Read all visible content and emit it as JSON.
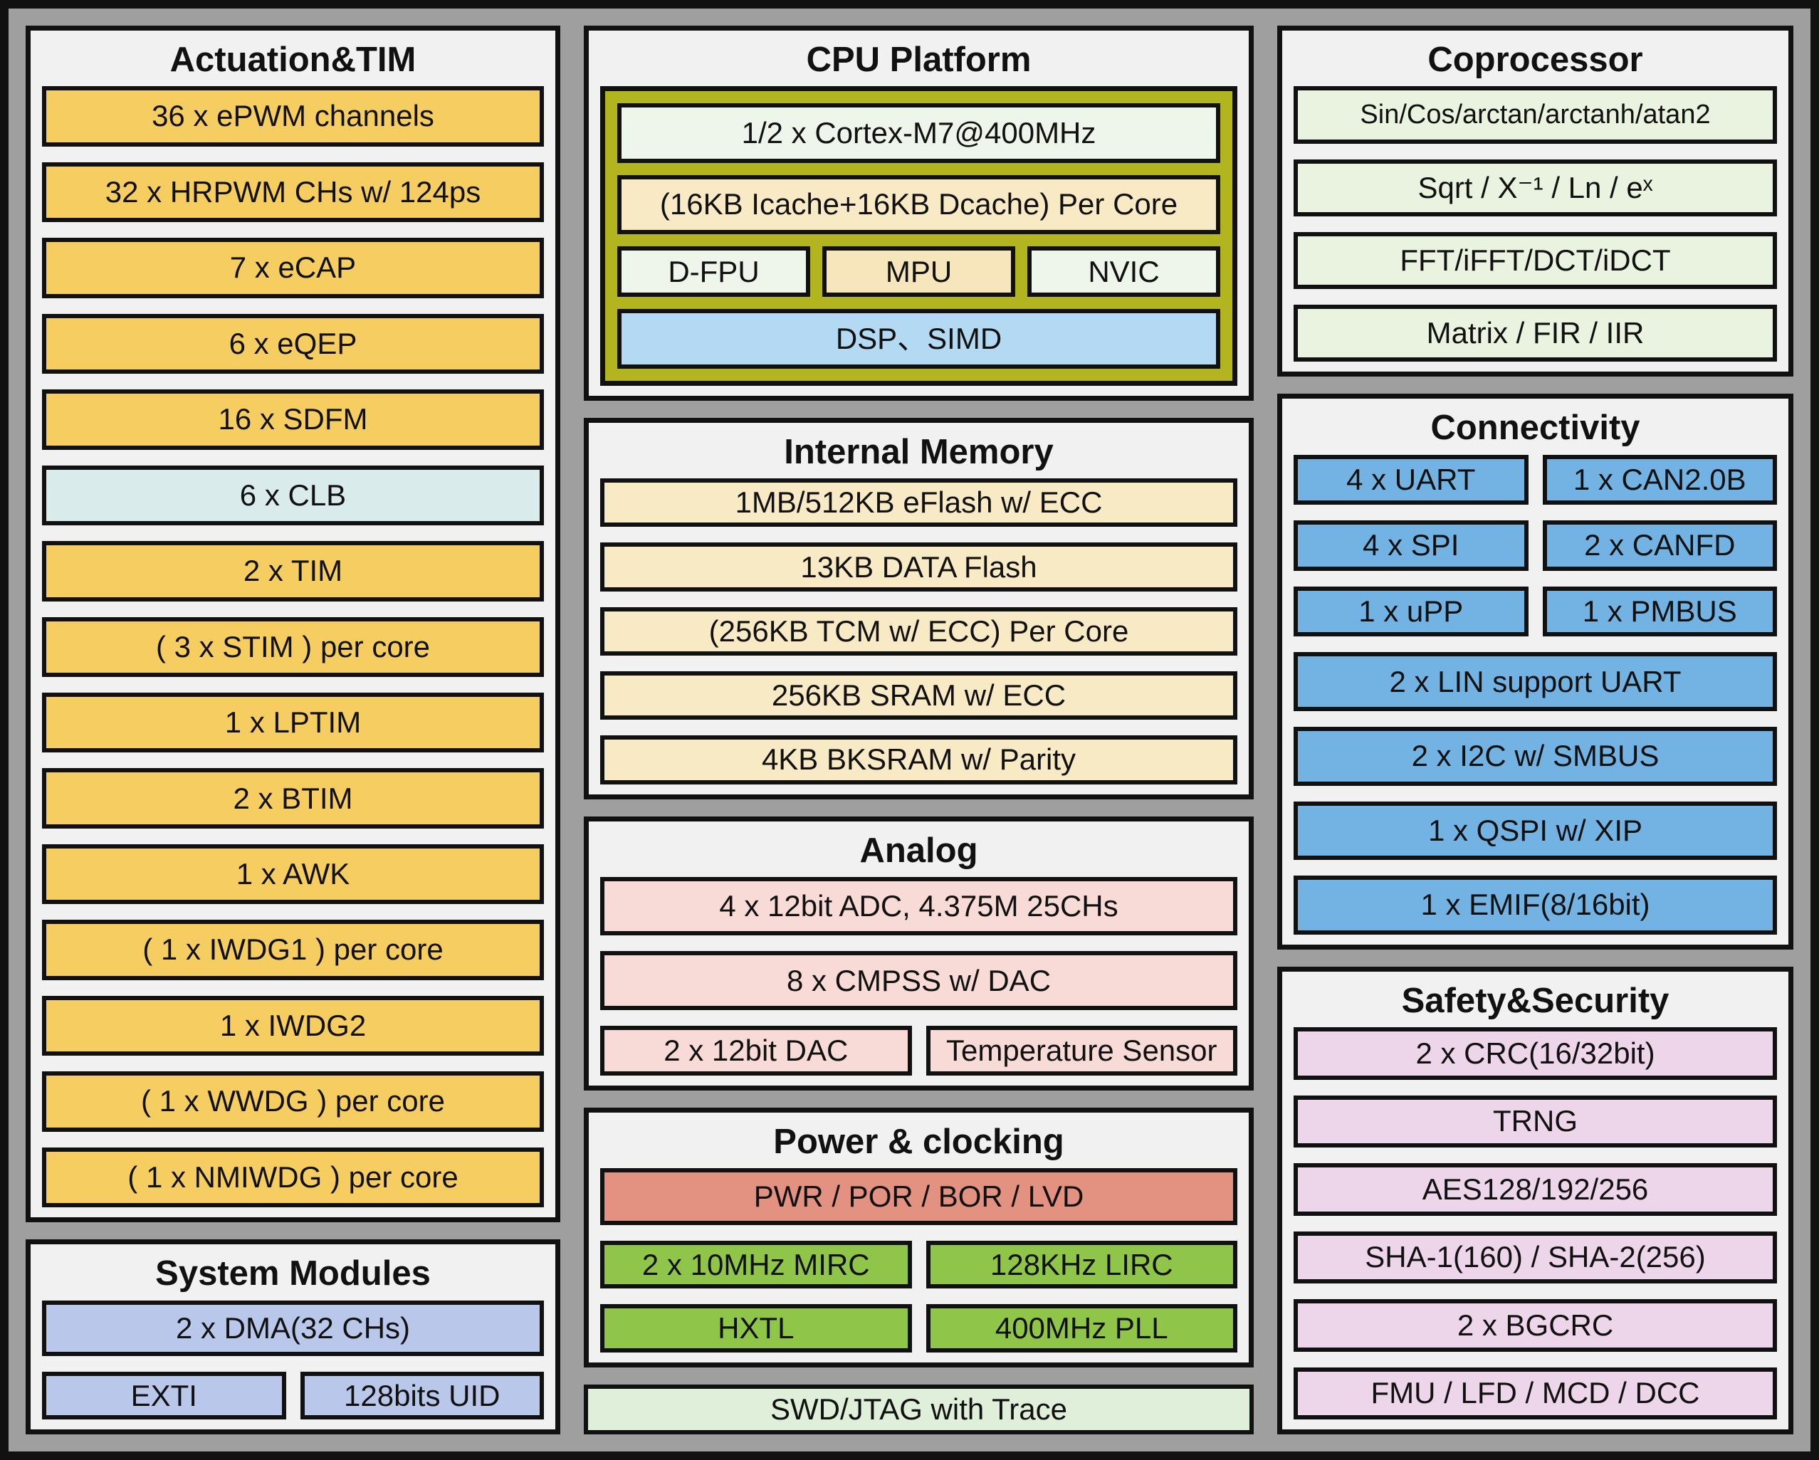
{
  "colors": {
    "ink": "#111111",
    "frame_gray": "#9f9f9f",
    "section_bg": "#f1f1f1",
    "yellow": "#f6cd60",
    "cyan": "#d9eceb",
    "periwinkle": "#b9c7ea",
    "cream": "#f9eac6",
    "cream_dark": "#f7e5bb",
    "pale": "#eef5ea",
    "olive": "#b2b51f",
    "dsp_blue": "#b3daf2",
    "copro_green": "#e9f3e0",
    "conn_blue": "#72b3e3",
    "analog_pink": "#f8dbd7",
    "salmon": "#e39180",
    "clock_green": "#8fc548",
    "swd_green": "#e0efd9",
    "safety_pink": "#eed6ea"
  },
  "left": {
    "actuation": {
      "title": "Actuation&TIM",
      "items": [
        "36 x ePWM channels",
        "32 x HRPWM CHs w/ 124ps",
        "7 x eCAP",
        "6 x eQEP",
        "16 x SDFM",
        "6 x CLB",
        "2 x TIM",
        "( 3 x STIM ) per core",
        "1 x LPTIM",
        "2 x BTIM",
        "1 x AWK",
        "( 1 x IWDG1 ) per core",
        "1 x IWDG2",
        "( 1 x WWDG ) per core",
        "( 1 x NMIWDG ) per core"
      ]
    },
    "system_modules": {
      "title": "System Modules",
      "dma": "2 x DMA(32 CHs)",
      "exti": "EXTI",
      "uid": "128bits UID"
    }
  },
  "middle": {
    "cpu": {
      "title": "CPU Platform",
      "core": "1/2 x Cortex-M7@400MHz",
      "cache": "(16KB Icache+16KB Dcache) Per Core",
      "dfpu": "D-FPU",
      "mpu": "MPU",
      "nvic": "NVIC",
      "dsp": "DSP、SIMD"
    },
    "memory": {
      "title": "Internal Memory",
      "items": [
        "1MB/512KB eFlash w/ ECC",
        "13KB DATA Flash",
        "(256KB TCM w/ ECC) Per Core",
        "256KB SRAM w/ ECC",
        "4KB BKSRAM w/ Parity"
      ]
    },
    "analog": {
      "title": "Analog",
      "adc": "4 x 12bit ADC, 4.375M 25CHs",
      "cmpss": "8 x CMPSS w/ DAC",
      "dac": "2 x 12bit DAC",
      "temp": "Temperature Sensor"
    },
    "power": {
      "title": "Power & clocking",
      "pwr": "PWR / POR / BOR / LVD",
      "mirc": "2 x 10MHz MIRC",
      "lirc": "128KHz LIRC",
      "hxtl": "HXTL",
      "pll": "400MHz PLL"
    },
    "swd": "SWD/JTAG with Trace"
  },
  "right": {
    "coprocessor": {
      "title": "Coprocessor",
      "items": [
        "Sin/Cos/arctan/arctanh/atan2",
        "Sqrt / X⁻¹ / Ln / eˣ",
        "FFT/iFFT/DCT/iDCT",
        "Matrix / FIR / IIR"
      ]
    },
    "connectivity": {
      "title": "Connectivity",
      "pairs": [
        [
          "4 x UART",
          "1 x CAN2.0B"
        ],
        [
          "4 x SPI",
          "2 x CANFD"
        ],
        [
          "1 x uPP",
          "1 x PMBUS"
        ]
      ],
      "rows": [
        "2 x LIN support UART",
        "2 x I2C w/ SMBUS",
        "1 x QSPI w/ XIP",
        "1 x EMIF(8/16bit)"
      ]
    },
    "safety": {
      "title": "Safety&Security",
      "items": [
        "2 x CRC(16/32bit)",
        "TRNG",
        "AES128/192/256",
        "SHA-1(160) / SHA-2(256)",
        "2 x BGCRC",
        "FMU / LFD / MCD / DCC"
      ]
    }
  }
}
